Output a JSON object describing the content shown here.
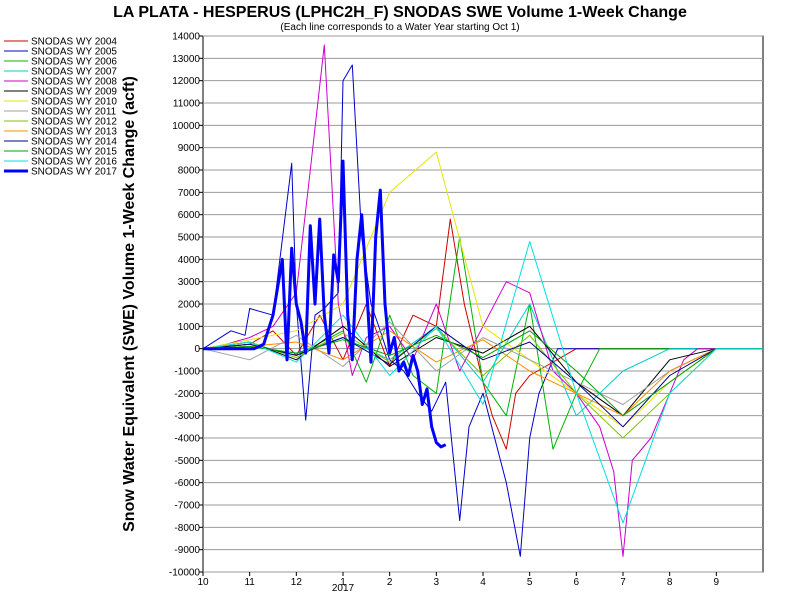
{
  "chart_data": {
    "type": "line",
    "title": "LA PLATA - HESPERUS (LPHC2H_F) SNODAS SWE Volume 1-Week Change",
    "subtitle": "(Each line corresponds to a Water Year starting Oct 1)",
    "ylabel": "Snow Water Equivalent (SWE) Volume 1-Week Change (acft)",
    "xlabel": "",
    "year_label": "2017",
    "ylim": [
      -10000,
      14000
    ],
    "yticks": [
      14000,
      13000,
      12000,
      11000,
      10000,
      9000,
      8000,
      7000,
      6000,
      5000,
      4000,
      3000,
      2000,
      1000,
      0,
      -1000,
      -2000,
      -3000,
      -4000,
      -5000,
      -6000,
      -7000,
      -8000,
      -9000,
      -10000
    ],
    "ytick_labels": [
      "14000",
      "13000",
      "12000",
      "11000",
      "10000",
      "9000",
      "8000",
      "7000",
      "6000",
      "5000",
      "4000",
      "3000",
      "2000",
      "1000",
      "0",
      "-1000",
      "-2000",
      "-3000",
      "-4000",
      "-5000",
      "-6000",
      "-7000",
      "-8000",
      "-9000",
      "-10000"
    ],
    "xlim": [
      0,
      12
    ],
    "xticks": [
      0,
      1,
      2,
      3,
      4,
      5,
      6,
      7,
      8,
      9,
      10,
      11
    ],
    "xtick_labels": [
      "10",
      "11",
      "12",
      "1",
      "2",
      "3",
      "4",
      "5",
      "6",
      "7",
      "8",
      "9"
    ],
    "grid": true,
    "legend_position": "left",
    "series": [
      {
        "name": "SNODAS WY 2004",
        "color": "#cc0000",
        "width": 1,
        "x": [
          0,
          1,
          1.5,
          2,
          2.5,
          3,
          3.5,
          4,
          4.5,
          5,
          5.3,
          5.6,
          6,
          6.2,
          6.5,
          6.7,
          7,
          8,
          9,
          10,
          11,
          12
        ],
        "y": [
          0,
          200,
          800,
          -300,
          1500,
          -500,
          2000,
          -800,
          1500,
          1000,
          5800,
          2000,
          -1500,
          -3000,
          -4500,
          -2000,
          -1200,
          0,
          0,
          0,
          0,
          0
        ]
      },
      {
        "name": "SNODAS WY 2005",
        "color": "#0000cc",
        "width": 1,
        "x": [
          0,
          0.6,
          0.9,
          1,
          1.5,
          1.9,
          2,
          2.2,
          2.4,
          2.6,
          2.9,
          3,
          3.2,
          3.4,
          3.6,
          3.8,
          4,
          4.3,
          4.6,
          4.9,
          5.2,
          5.5,
          5.7,
          6,
          6.5,
          6.8,
          7,
          7.2,
          7.4,
          7.6,
          8,
          9,
          10,
          11,
          12
        ],
        "y": [
          0,
          800,
          600,
          1800,
          1500,
          8300,
          2000,
          -3200,
          1500,
          1800,
          2500,
          12000,
          12700,
          5000,
          2000,
          800,
          -500,
          -1000,
          -2000,
          -2800,
          -1500,
          -7700,
          -3500,
          -2000,
          -6000,
          -9300,
          -4000,
          -2000,
          -1000,
          0,
          0,
          0,
          0,
          0,
          0
        ]
      },
      {
        "name": "SNODAS WY 2006",
        "color": "#00b400",
        "width": 1,
        "x": [
          0,
          1,
          2,
          3,
          3.5,
          4,
          4.5,
          5,
          5.5,
          6,
          6.5,
          7,
          7.5,
          8,
          8.5,
          9,
          9.5,
          10,
          10.5,
          11,
          11.5,
          12
        ],
        "y": [
          0,
          200,
          -300,
          800,
          -1500,
          1500,
          -1200,
          -2000,
          5000,
          -1500,
          -3000,
          2000,
          -4500,
          -2000,
          0,
          0,
          0,
          0,
          0,
          0,
          0,
          0
        ]
      },
      {
        "name": "SNODAS WY 2007",
        "color": "#00cccc",
        "width": 1,
        "x": [
          0,
          1,
          2,
          3,
          4,
          5,
          6,
          7,
          8,
          9,
          10,
          11,
          12
        ],
        "y": [
          0,
          100,
          -200,
          500,
          -500,
          1000,
          -1500,
          2000,
          -3000,
          -1000,
          0,
          0,
          0
        ]
      },
      {
        "name": "SNODAS WY 2008",
        "color": "#cc00cc",
        "width": 1,
        "x": [
          0,
          0.5,
          1,
          1.5,
          2,
          2.3,
          2.6,
          2.9,
          3.2,
          3.5,
          4,
          4.5,
          5,
          5.5,
          6,
          6.5,
          7,
          7.5,
          8,
          8.5,
          8.8,
          9,
          9.2,
          9.6,
          10,
          10.3,
          10.6,
          11,
          12
        ],
        "y": [
          0,
          200,
          500,
          1000,
          2500,
          8000,
          13600,
          2000,
          -1200,
          500,
          1000,
          -500,
          2000,
          -1000,
          1000,
          3000,
          2500,
          -1000,
          -2000,
          -3500,
          -5500,
          -9300,
          -5000,
          -4000,
          -2000,
          -500,
          0,
          0,
          0
        ]
      },
      {
        "name": "SNODAS WY 2009",
        "color": "#000000",
        "width": 1,
        "x": [
          0,
          1,
          2,
          3,
          4,
          5,
          6,
          7,
          8,
          9,
          10,
          11,
          12
        ],
        "y": [
          0,
          300,
          -500,
          1000,
          -800,
          500,
          -200,
          1000,
          -1500,
          -3000,
          -500,
          0,
          0
        ]
      },
      {
        "name": "SNODAS WY 2010",
        "color": "#e6e600",
        "width": 1,
        "x": [
          0,
          1,
          2,
          3,
          4,
          5,
          6,
          7,
          8,
          9,
          10,
          11,
          12
        ],
        "y": [
          0,
          400,
          800,
          2000,
          7000,
          8800,
          1000,
          -500,
          -2000,
          -3500,
          -1500,
          0,
          0
        ]
      },
      {
        "name": "SNODAS WY 2011",
        "color": "#a0a0a0",
        "width": 1,
        "x": [
          0,
          1,
          2,
          3,
          4,
          5,
          6,
          7,
          8,
          9,
          10,
          11,
          12
        ],
        "y": [
          0,
          -500,
          600,
          -800,
          1200,
          -1000,
          500,
          -500,
          -1500,
          -2500,
          -1000,
          0,
          0
        ]
      },
      {
        "name": "SNODAS WY 2012",
        "color": "#80c000",
        "width": 1,
        "x": [
          0,
          1,
          2,
          3,
          4,
          5,
          6,
          7,
          8,
          9,
          10,
          11,
          12
        ],
        "y": [
          0,
          300,
          -400,
          700,
          -600,
          900,
          -1200,
          600,
          -2000,
          -4000,
          -2000,
          0,
          0
        ]
      },
      {
        "name": "SNODAS WY 2013",
        "color": "#ff8c00",
        "width": 1,
        "x": [
          0,
          1,
          2,
          3,
          4,
          5,
          6,
          7,
          8,
          9,
          10,
          11,
          12
        ],
        "y": [
          0,
          100,
          300,
          -500,
          800,
          -600,
          400,
          -1000,
          -2000,
          -3000,
          -1000,
          0,
          0
        ]
      },
      {
        "name": "SNODAS WY 2014",
        "color": "#000080",
        "width": 1,
        "x": [
          0,
          1,
          2,
          3,
          4,
          5,
          6,
          7,
          8,
          9,
          10,
          11,
          12
        ],
        "y": [
          0,
          200,
          -300,
          500,
          -700,
          1000,
          -500,
          300,
          -1500,
          -3500,
          -1200,
          0,
          0
        ]
      },
      {
        "name": "SNODAS WY 2015",
        "color": "#00a000",
        "width": 1,
        "x": [
          0,
          1,
          2,
          3,
          4,
          5,
          6,
          7,
          8,
          9,
          10,
          11,
          12
        ],
        "y": [
          0,
          100,
          -200,
          400,
          -300,
          600,
          -400,
          800,
          -1000,
          -3000,
          -1500,
          0,
          0
        ]
      },
      {
        "name": "SNODAS WY 2016",
        "color": "#00e0e0",
        "width": 1,
        "x": [
          0,
          1,
          2,
          3,
          4,
          5,
          6,
          7,
          8,
          9,
          10,
          11,
          12
        ],
        "y": [
          0,
          300,
          -600,
          1500,
          -1200,
          1000,
          -2500,
          4800,
          -2000,
          -7800,
          -2000,
          0,
          0
        ]
      },
      {
        "name": "SNODAS WY 2017",
        "color": "#0000ff",
        "width": 3,
        "x": [
          0,
          0.6,
          1.1,
          1.3,
          1.5,
          1.7,
          1.8,
          1.9,
          2.0,
          2.1,
          2.2,
          2.3,
          2.4,
          2.5,
          2.6,
          2.7,
          2.8,
          2.9,
          3.0,
          3.1,
          3.2,
          3.3,
          3.4,
          3.5,
          3.6,
          3.7,
          3.8,
          3.9,
          4.0,
          4.1,
          4.2,
          4.3,
          4.4,
          4.5,
          4.6,
          4.7,
          4.8,
          4.9,
          5.0,
          5.1,
          5.2
        ],
        "y": [
          0,
          0,
          0,
          200,
          1500,
          4000,
          -500,
          4500,
          2000,
          1200,
          -200,
          5500,
          2000,
          5800,
          1500,
          -200,
          4200,
          3000,
          8400,
          1500,
          -500,
          4000,
          6000,
          3000,
          -600,
          5000,
          7100,
          2000,
          -200,
          500,
          -1000,
          -600,
          -1200,
          -300,
          -1000,
          -2500,
          -1800,
          -3500,
          -4200,
          -4400,
          -4300
        ]
      }
    ]
  }
}
